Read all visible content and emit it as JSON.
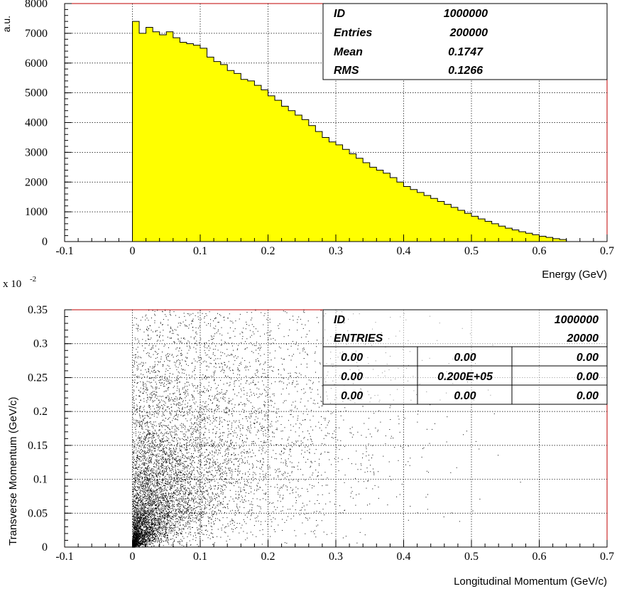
{
  "chart_data": [
    {
      "type": "bar",
      "subtype": "histogram",
      "fill_color": "#ffff00",
      "xlabel": "Energy (GeV)",
      "ylabel": "a.u.",
      "xlim": [
        -0.1,
        0.7
      ],
      "ylim": [
        0,
        8000
      ],
      "bin_width": 0.01,
      "grid": true,
      "x_ticks": [
        "-0.1",
        "0",
        "0.1",
        "0.2",
        "0.3",
        "0.4",
        "0.5",
        "0.6",
        "0.7"
      ],
      "y_ticks": [
        "0",
        "1000",
        "2000",
        "3000",
        "4000",
        "5000",
        "6000",
        "7000",
        "8000"
      ],
      "bin_edges_start": 0.0,
      "values": [
        7400,
        7000,
        7200,
        7050,
        6950,
        7050,
        6850,
        6700,
        6650,
        6600,
        6500,
        6200,
        6050,
        5950,
        5750,
        5650,
        5450,
        5400,
        5250,
        5100,
        4900,
        4750,
        4550,
        4400,
        4250,
        4100,
        3900,
        3700,
        3500,
        3350,
        3250,
        3100,
        2950,
        2800,
        2650,
        2500,
        2400,
        2300,
        2150,
        2000,
        1850,
        1750,
        1650,
        1550,
        1450,
        1350,
        1250,
        1150,
        1050,
        950,
        850,
        760,
        680,
        600,
        520,
        450,
        390,
        330,
        280,
        230,
        180,
        140,
        100,
        70
      ],
      "stats": [
        {
          "label": "ID",
          "value": "1000000"
        },
        {
          "label": "Entries",
          "value": "200000"
        },
        {
          "label": "Mean",
          "value": "0.1747"
        },
        {
          "label": "RMS",
          "value": "0.1266"
        }
      ]
    },
    {
      "type": "scatter",
      "xlabel": "Longitudinal Momentum (GeV/c)",
      "ylabel": "Transverse Momentum (GeV/c)",
      "y_scale_label": "x 10",
      "y_scale_exponent": "-2",
      "xlim": [
        -0.1,
        0.7
      ],
      "ylim": [
        0,
        0.35
      ],
      "grid": true,
      "x_ticks": [
        "-0.1",
        "0",
        "0.1",
        "0.2",
        "0.3",
        "0.4",
        "0.5",
        "0.6",
        "0.7"
      ],
      "y_ticks": [
        "0",
        "0.05",
        "0.1",
        "0.15",
        "0.2",
        "0.25",
        "0.3",
        "0.35"
      ],
      "point_color": "#000000",
      "entries_total": "20000",
      "stats": {
        "id_label": "ID",
        "id_value": "1000000",
        "entries_label": "ENTRIES",
        "entries_value": "20000",
        "grid": [
          [
            "0.00",
            "0.00",
            "0.00"
          ],
          [
            "0.00",
            "0.200E+05",
            "0.00"
          ],
          [
            "0.00",
            "0.00",
            "0.00"
          ]
        ]
      }
    }
  ]
}
